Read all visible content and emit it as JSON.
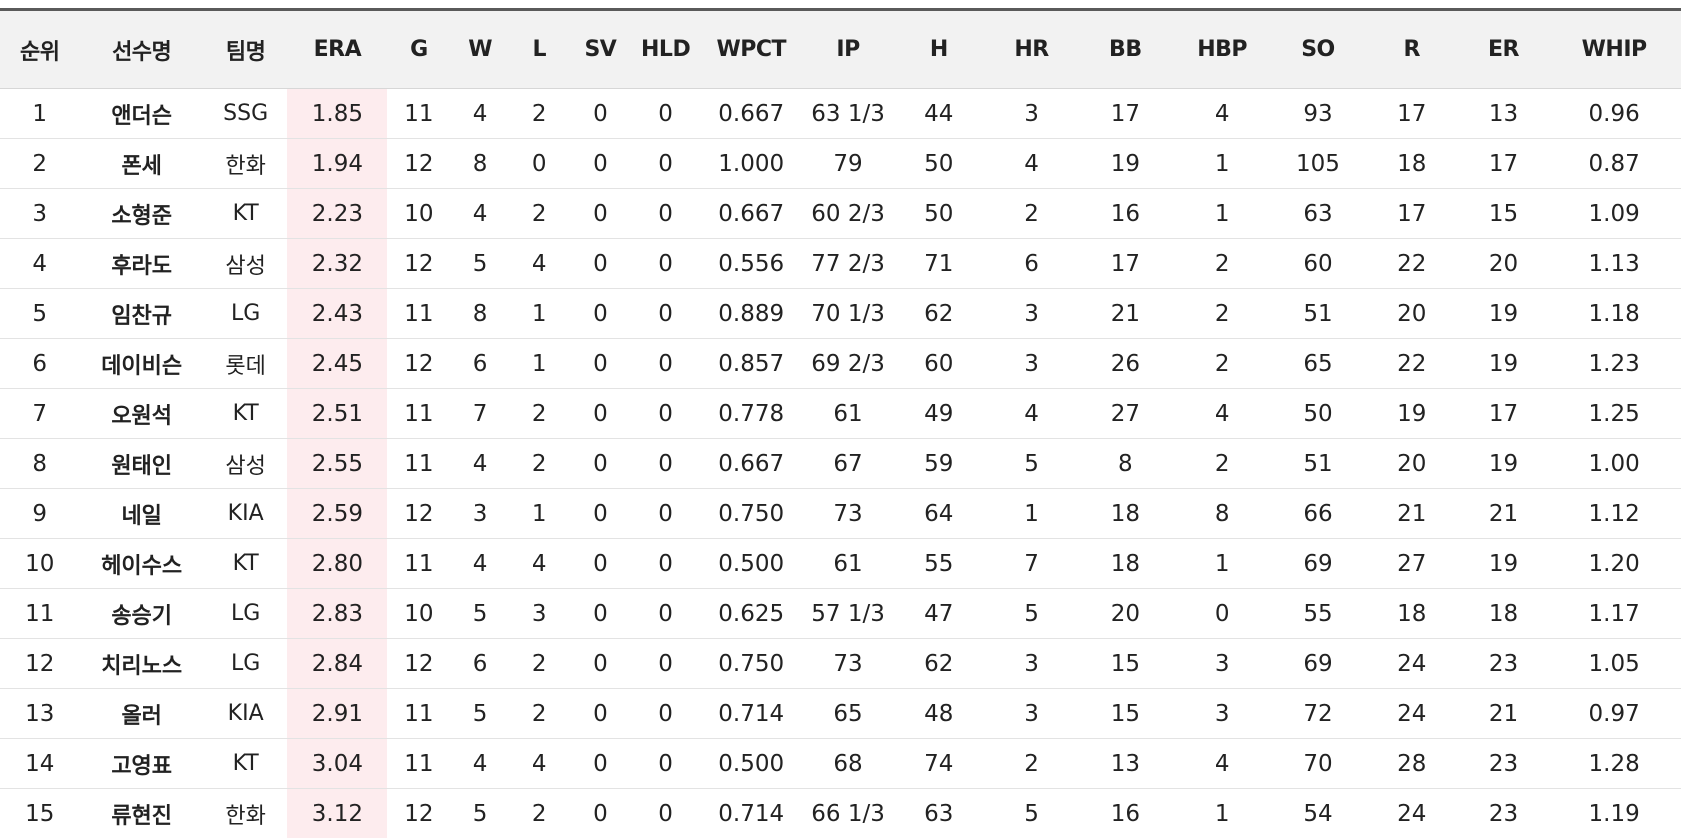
{
  "table": {
    "headers": [
      "순위",
      "선수명",
      "팀명",
      "ERA",
      "G",
      "W",
      "L",
      "SV",
      "HLD",
      "WPCT",
      "IP",
      "H",
      "HR",
      "BB",
      "HBP",
      "SO",
      "R",
      "ER",
      "WHIP"
    ],
    "rows": [
      [
        "1",
        "앤더슨",
        "SSG",
        "1.85",
        "11",
        "4",
        "2",
        "0",
        "0",
        "0.667",
        "63 1/3",
        "44",
        "3",
        "17",
        "4",
        "93",
        "17",
        "13",
        "0.96"
      ],
      [
        "2",
        "폰세",
        "한화",
        "1.94",
        "12",
        "8",
        "0",
        "0",
        "0",
        "1.000",
        "79",
        "50",
        "4",
        "19",
        "1",
        "105",
        "18",
        "17",
        "0.87"
      ],
      [
        "3",
        "소형준",
        "KT",
        "2.23",
        "10",
        "4",
        "2",
        "0",
        "0",
        "0.667",
        "60 2/3",
        "50",
        "2",
        "16",
        "1",
        "63",
        "17",
        "15",
        "1.09"
      ],
      [
        "4",
        "후라도",
        "삼성",
        "2.32",
        "12",
        "5",
        "4",
        "0",
        "0",
        "0.556",
        "77 2/3",
        "71",
        "6",
        "17",
        "2",
        "60",
        "22",
        "20",
        "1.13"
      ],
      [
        "5",
        "임찬규",
        "LG",
        "2.43",
        "11",
        "8",
        "1",
        "0",
        "0",
        "0.889",
        "70 1/3",
        "62",
        "3",
        "21",
        "2",
        "51",
        "20",
        "19",
        "1.18"
      ],
      [
        "6",
        "데이비슨",
        "롯데",
        "2.45",
        "12",
        "6",
        "1",
        "0",
        "0",
        "0.857",
        "69 2/3",
        "60",
        "3",
        "26",
        "2",
        "65",
        "22",
        "19",
        "1.23"
      ],
      [
        "7",
        "오원석",
        "KT",
        "2.51",
        "11",
        "7",
        "2",
        "0",
        "0",
        "0.778",
        "61",
        "49",
        "4",
        "27",
        "4",
        "50",
        "19",
        "17",
        "1.25"
      ],
      [
        "8",
        "원태인",
        "삼성",
        "2.55",
        "11",
        "4",
        "2",
        "0",
        "0",
        "0.667",
        "67",
        "59",
        "5",
        "8",
        "2",
        "51",
        "20",
        "19",
        "1.00"
      ],
      [
        "9",
        "네일",
        "KIA",
        "2.59",
        "12",
        "3",
        "1",
        "0",
        "0",
        "0.750",
        "73",
        "64",
        "1",
        "18",
        "8",
        "66",
        "21",
        "21",
        "1.12"
      ],
      [
        "10",
        "헤이수스",
        "KT",
        "2.80",
        "11",
        "4",
        "4",
        "0",
        "0",
        "0.500",
        "61",
        "55",
        "7",
        "18",
        "1",
        "69",
        "27",
        "19",
        "1.20"
      ],
      [
        "11",
        "송승기",
        "LG",
        "2.83",
        "10",
        "5",
        "3",
        "0",
        "0",
        "0.625",
        "57 1/3",
        "47",
        "5",
        "20",
        "0",
        "55",
        "18",
        "18",
        "1.17"
      ],
      [
        "12",
        "치리노스",
        "LG",
        "2.84",
        "12",
        "6",
        "2",
        "0",
        "0",
        "0.750",
        "73",
        "62",
        "3",
        "15",
        "3",
        "69",
        "24",
        "23",
        "1.05"
      ],
      [
        "13",
        "올러",
        "KIA",
        "2.91",
        "11",
        "5",
        "2",
        "0",
        "0",
        "0.714",
        "65",
        "48",
        "3",
        "15",
        "3",
        "72",
        "24",
        "21",
        "0.97"
      ],
      [
        "14",
        "고영표",
        "KT",
        "3.04",
        "11",
        "4",
        "4",
        "0",
        "0",
        "0.500",
        "68",
        "74",
        "2",
        "13",
        "4",
        "70",
        "28",
        "23",
        "1.28"
      ],
      [
        "15",
        "류현진",
        "한화",
        "3.12",
        "12",
        "5",
        "2",
        "0",
        "0",
        "0.714",
        "66 1/3",
        "63",
        "5",
        "16",
        "1",
        "54",
        "24",
        "23",
        "1.19"
      ]
    ]
  },
  "colors": {
    "header_background": "#f2f2f2",
    "highlight_column_background": "#fdecee",
    "top_rule": "#5a5a5a"
  }
}
